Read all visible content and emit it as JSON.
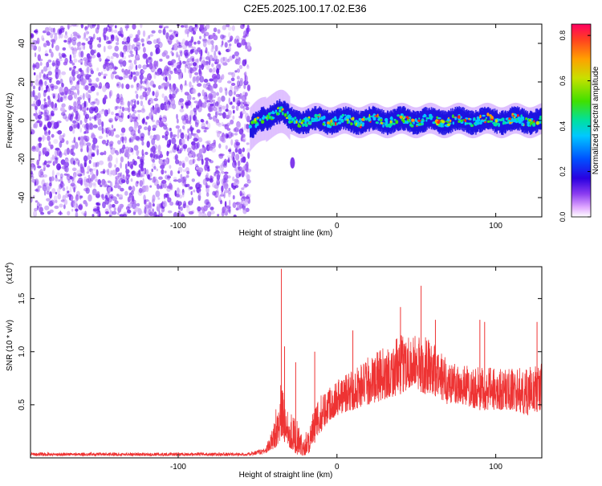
{
  "figure": {
    "title": "C2E5.2025.100.17.02.E36"
  },
  "chart_data": [
    {
      "type": "heatmap",
      "title": "",
      "xlabel": "Height of straight line (km)",
      "ylabel": "Frequency (Hz)",
      "xlim": [
        -193,
        129
      ],
      "ylim": [
        -50,
        50
      ],
      "xticks": [
        -100,
        0,
        100
      ],
      "yticks": [
        -40,
        -20,
        0,
        20,
        40
      ],
      "grid": false,
      "colorbar": {
        "label": "Normalized spectral amplitude",
        "range": [
          0.0,
          0.85
        ],
        "ticks": [
          "0.0",
          "0.2",
          "0.4",
          "0.6",
          "0.8"
        ],
        "colormap": [
          "#ffffff",
          "#e0a8ff",
          "#8a3cf0",
          "#2a00e0",
          "#0050ff",
          "#00c8ff",
          "#00e0a0",
          "#40e000",
          "#c8e000",
          "#ffa000",
          "#ff4020",
          "#ff0060"
        ]
      },
      "description_values": {
        "noise_region_x": [
          -193,
          -55
        ],
        "signal_onset_x": -55,
        "signal_band_center_hz": 0,
        "signal_band_halfwidth_hz": 5,
        "early_bump": {
          "x": -35,
          "freq_hz": 5
        },
        "isolated_blob": {
          "x": -28,
          "freq_hz": -22
        }
      }
    },
    {
      "type": "line",
      "title": "",
      "xlabel": "Height of straight line (km)",
      "ylabel": "SNR (10 * v/v)",
      "yscale_label": "(x10",
      "yscale_exp": "4",
      "xlim": [
        -193,
        129
      ],
      "ylim": [
        0,
        1.8
      ],
      "xticks": [
        -100,
        0,
        100
      ],
      "yticks": [
        "0.5",
        "1.0",
        "1.5"
      ],
      "ytick_values": [
        0.5,
        1.0,
        1.5
      ],
      "series": [
        {
          "color": "#ee3333",
          "envelope": {
            "x": [
              -193,
              -140,
              -90,
              -55,
              -45,
              -40,
              -37,
              -35,
              -33,
              -30,
              -25,
              -22,
              -18,
              -12,
              -5,
              0,
              10,
              20,
              30,
              40,
              45,
              50,
              55,
              60,
              65,
              70,
              80,
              90,
              100,
              110,
              120,
              129
            ],
            "low": [
              0.02,
              0.02,
              0.02,
              0.02,
              0.04,
              0.08,
              0.12,
              0.2,
              0.15,
              0.1,
              0.03,
              0.02,
              0.03,
              0.2,
              0.35,
              0.4,
              0.45,
              0.5,
              0.55,
              0.6,
              0.65,
              0.65,
              0.6,
              0.6,
              0.55,
              0.5,
              0.5,
              0.45,
              0.45,
              0.45,
              0.4,
              0.45
            ],
            "high": [
              0.05,
              0.05,
              0.05,
              0.05,
              0.1,
              0.3,
              0.65,
              0.7,
              0.6,
              0.45,
              0.35,
              0.2,
              0.3,
              0.55,
              0.7,
              0.75,
              0.85,
              0.95,
              1.05,
              1.15,
              1.2,
              1.15,
              1.15,
              1.1,
              1.0,
              0.95,
              0.9,
              0.85,
              0.85,
              0.85,
              0.85,
              0.9
            ]
          },
          "spikes": [
            {
              "x": -35,
              "y": 1.78
            },
            {
              "x": -33,
              "y": 1.05
            },
            {
              "x": -26,
              "y": 0.9
            },
            {
              "x": -14,
              "y": 1.0
            },
            {
              "x": 10,
              "y": 1.2
            },
            {
              "x": 40,
              "y": 1.42
            },
            {
              "x": 53,
              "y": 1.62
            },
            {
              "x": 62,
              "y": 1.3
            },
            {
              "x": 90,
              "y": 1.3
            },
            {
              "x": 93,
              "y": 1.28
            },
            {
              "x": 126,
              "y": 1.28
            }
          ]
        }
      ]
    }
  ]
}
